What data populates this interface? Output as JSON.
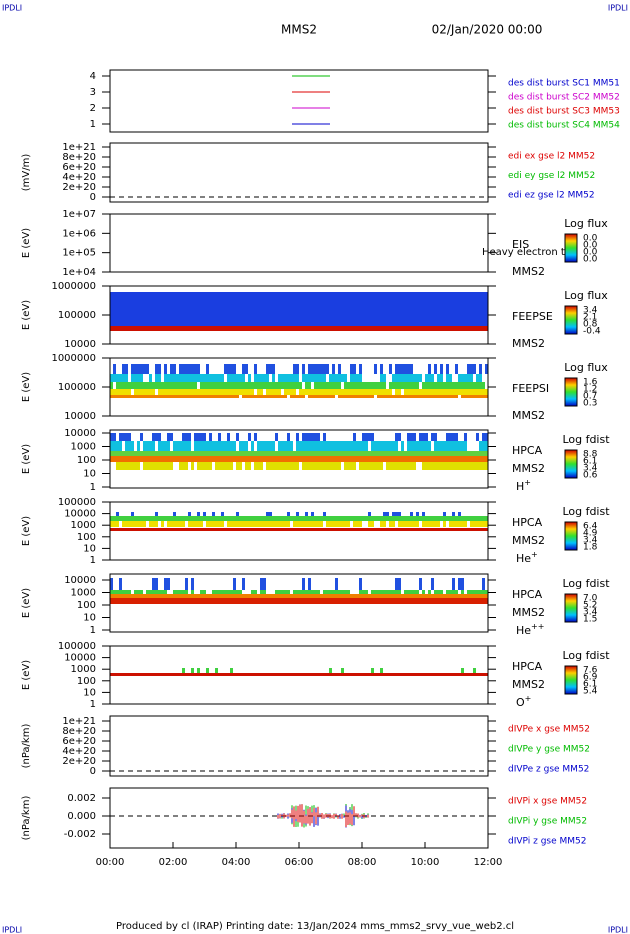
{
  "header": {
    "corner_left": "IPDLI",
    "corner_right": "IPDLI",
    "title": "MMS2",
    "date": "02/Jan/2020 00:00"
  },
  "footer": {
    "corner_left": "IPDLI",
    "corner_right": "IPDLI",
    "text": "Produced by cl (IRAP)   Printing date: 13/Jan/2024   mms_mms2_srvy_vue_web2.cl"
  },
  "x_ticks": [
    "00:00",
    "02:00",
    "04:00",
    "06:00",
    "08:00",
    "10:00",
    "12:00"
  ],
  "panels": [
    {
      "yticks": [
        "4",
        "3",
        "2",
        "1"
      ],
      "legend": [
        {
          "text": "des dist burst SC1 MM51",
          "color": "#0000cc"
        },
        {
          "text": "des dist burst SC2 MM52",
          "color": "#cc00cc"
        },
        {
          "text": "des dist burst SC3 MM53",
          "color": "#dd0000"
        },
        {
          "text": "des dist burst SC4 MM54",
          "color": "#00bb00"
        }
      ]
    },
    {
      "ylabel": "(mV/m)",
      "yticks": [
        "1e+21",
        "8e+20",
        "6e+20",
        "4e+20",
        "2e+20",
        "0"
      ],
      "legend": [
        {
          "text": "edi ex gse l2 MM52",
          "color": "#dd0000"
        },
        {
          "text": "edi ey gse l2 MM52",
          "color": "#00bb00"
        },
        {
          "text": "edi ez gse l2 MM52",
          "color": "#0000cc"
        }
      ]
    },
    {
      "ylabel": "E (eV)",
      "yticks": [
        "1e+07",
        "1e+06",
        "1e+05",
        "1e+04"
      ],
      "side": [
        "EIS",
        "MMS2"
      ],
      "overlay": "Heavy electron to",
      "colorbar": {
        "title": "Log flux",
        "labels": [
          "0.0",
          "0.0",
          "0.0",
          "0.0"
        ]
      }
    },
    {
      "ylabel": "E (eV)",
      "yticks": [
        "1000000",
        "100000",
        "10000"
      ],
      "side": [
        "FEEPSE",
        "MMS2"
      ],
      "colorbar": {
        "title": "Log flux",
        "labels": [
          "3.4",
          "2.1",
          "0.8",
          "-0.4"
        ]
      }
    },
    {
      "ylabel": "E (eV)",
      "yticks": [
        "1000000",
        "100000",
        "10000"
      ],
      "side": [
        "FEEPSI",
        "MMS2"
      ],
      "colorbar": {
        "title": "Log flux",
        "labels": [
          "1.6",
          "1.2",
          "0.7",
          "0.3"
        ]
      }
    },
    {
      "ylabel": "E (eV)",
      "yticks": [
        "10000",
        "1000",
        "100",
        "10",
        "1"
      ],
      "side": [
        "HPCA",
        "MMS2"
      ],
      "species": {
        "base": "H",
        "sup": "+"
      },
      "colorbar": {
        "title": "Log fdist",
        "labels": [
          "8.8",
          "6.1",
          "3.4",
          "0.6"
        ]
      }
    },
    {
      "ylabel": "E (eV)",
      "yticks": [
        "100000",
        "10000",
        "1000",
        "100",
        "10",
        "1"
      ],
      "side": [
        "HPCA",
        "MMS2"
      ],
      "species": {
        "base": "He",
        "sup": "+"
      },
      "colorbar": {
        "title": "Log fdist",
        "labels": [
          "6.4",
          "4.9",
          "3.4",
          "1.8"
        ]
      }
    },
    {
      "ylabel": "E (eV)",
      "yticks": [
        "10000",
        "1000",
        "100",
        "10",
        "1"
      ],
      "side": [
        "HPCA",
        "MMS2"
      ],
      "species": {
        "base": "He",
        "sup": "++"
      },
      "colorbar": {
        "title": "Log fdist",
        "labels": [
          "7.0",
          "5.2",
          "3.4",
          "1.5"
        ]
      }
    },
    {
      "ylabel": "E (eV)",
      "yticks": [
        "100000",
        "10000",
        "1000",
        "100",
        "10",
        "1"
      ],
      "side": [
        "HPCA",
        "MMS2"
      ],
      "species": {
        "base": "O",
        "sup": "+"
      },
      "colorbar": {
        "title": "Log fdist",
        "labels": [
          "7.6",
          "6.9",
          "6.1",
          "5.4"
        ]
      }
    },
    {
      "ylabel": "(nPa/km)",
      "yticks": [
        "1e+21",
        "8e+20",
        "6e+20",
        "4e+20",
        "2e+20",
        "0"
      ],
      "legend": [
        {
          "text": "dIVPe x gse MM52",
          "color": "#dd0000"
        },
        {
          "text": "dIVPe y gse MM52",
          "color": "#00bb00"
        },
        {
          "text": "dIVPe z gse MM52",
          "color": "#0000cc"
        }
      ]
    },
    {
      "ylabel": "(nPa/km)",
      "yticks": [
        "0.002",
        "0.000",
        "-0.002"
      ],
      "legend": [
        {
          "text": "dIVPi x gse MM52",
          "color": "#dd0000"
        },
        {
          "text": "dIVPi y gse MM52",
          "color": "#00bb00"
        },
        {
          "text": "dIVPi z gse MM52",
          "color": "#0000cc"
        }
      ]
    }
  ]
}
